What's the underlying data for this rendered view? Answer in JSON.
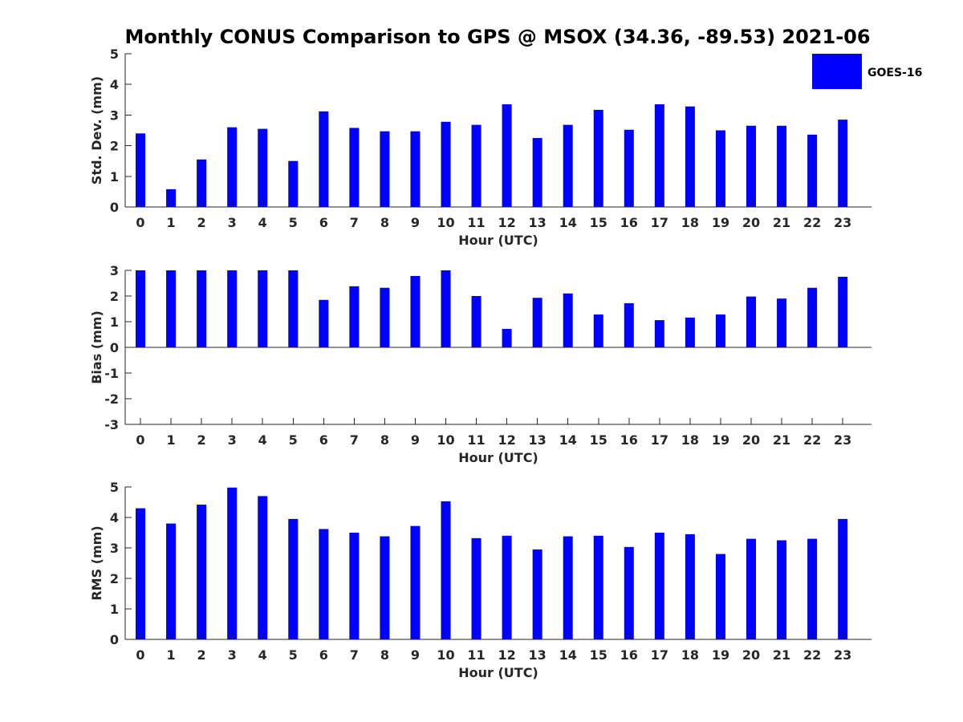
{
  "title": "Monthly CONUS Comparison to GPS @ MSOX (34.36, -89.53) 2021-06",
  "legend": {
    "label": "GOES-16",
    "color": "#0000ff",
    "placement": "top-right"
  },
  "chart_data": [
    {
      "type": "bar",
      "xlabel": "Hour (UTC)",
      "ylabel": "Std. Dev. (mm)",
      "ylim": [
        0,
        5
      ],
      "yticks": [
        "0",
        "1",
        "2",
        "3",
        "4",
        "5"
      ],
      "categories": [
        "0",
        "1",
        "2",
        "3",
        "4",
        "5",
        "6",
        "7",
        "8",
        "9",
        "10",
        "11",
        "12",
        "13",
        "14",
        "15",
        "16",
        "17",
        "18",
        "19",
        "20",
        "21",
        "22",
        "23"
      ],
      "series": [
        {
          "name": "GOES-16",
          "values": [
            2.4,
            0.58,
            1.55,
            2.6,
            2.55,
            1.5,
            3.12,
            2.58,
            2.47,
            2.47,
            2.78,
            2.68,
            3.35,
            2.25,
            2.68,
            3.17,
            2.52,
            3.35,
            3.28,
            2.5,
            2.65,
            2.65,
            2.36,
            2.85
          ]
        }
      ]
    },
    {
      "type": "bar",
      "xlabel": "Hour (UTC)",
      "ylabel": "Bias (mm)",
      "ylim": [
        -3,
        3
      ],
      "yticks": [
        "-3",
        "-2",
        "-1",
        "0",
        "1",
        "2",
        "3"
      ],
      "categories": [
        "0",
        "1",
        "2",
        "3",
        "4",
        "5",
        "6",
        "7",
        "8",
        "9",
        "10",
        "11",
        "12",
        "13",
        "14",
        "15",
        "16",
        "17",
        "18",
        "19",
        "20",
        "21",
        "22",
        "23"
      ],
      "series": [
        {
          "name": "GOES-16",
          "values": [
            3.0,
            3.0,
            3.0,
            3.0,
            3.0,
            3.0,
            1.85,
            2.38,
            2.32,
            2.78,
            3.0,
            2.0,
            0.72,
            1.93,
            2.1,
            1.28,
            1.72,
            1.06,
            1.16,
            1.28,
            1.98,
            1.9,
            2.32,
            2.75
          ]
        }
      ]
    },
    {
      "type": "bar",
      "xlabel": "Hour (UTC)",
      "ylabel": "RMS (mm)",
      "ylim": [
        0,
        5
      ],
      "yticks": [
        "0",
        "1",
        "2",
        "3",
        "4",
        "5"
      ],
      "categories": [
        "0",
        "1",
        "2",
        "3",
        "4",
        "5",
        "6",
        "7",
        "8",
        "9",
        "10",
        "11",
        "12",
        "13",
        "14",
        "15",
        "16",
        "17",
        "18",
        "19",
        "20",
        "21",
        "22",
        "23"
      ],
      "series": [
        {
          "name": "GOES-16",
          "values": [
            4.3,
            3.8,
            4.42,
            4.98,
            4.7,
            3.95,
            3.62,
            3.5,
            3.38,
            3.72,
            4.53,
            3.32,
            3.4,
            2.95,
            3.38,
            3.4,
            3.03,
            3.5,
            3.45,
            2.8,
            3.3,
            3.25,
            3.3,
            3.95
          ]
        }
      ]
    }
  ]
}
